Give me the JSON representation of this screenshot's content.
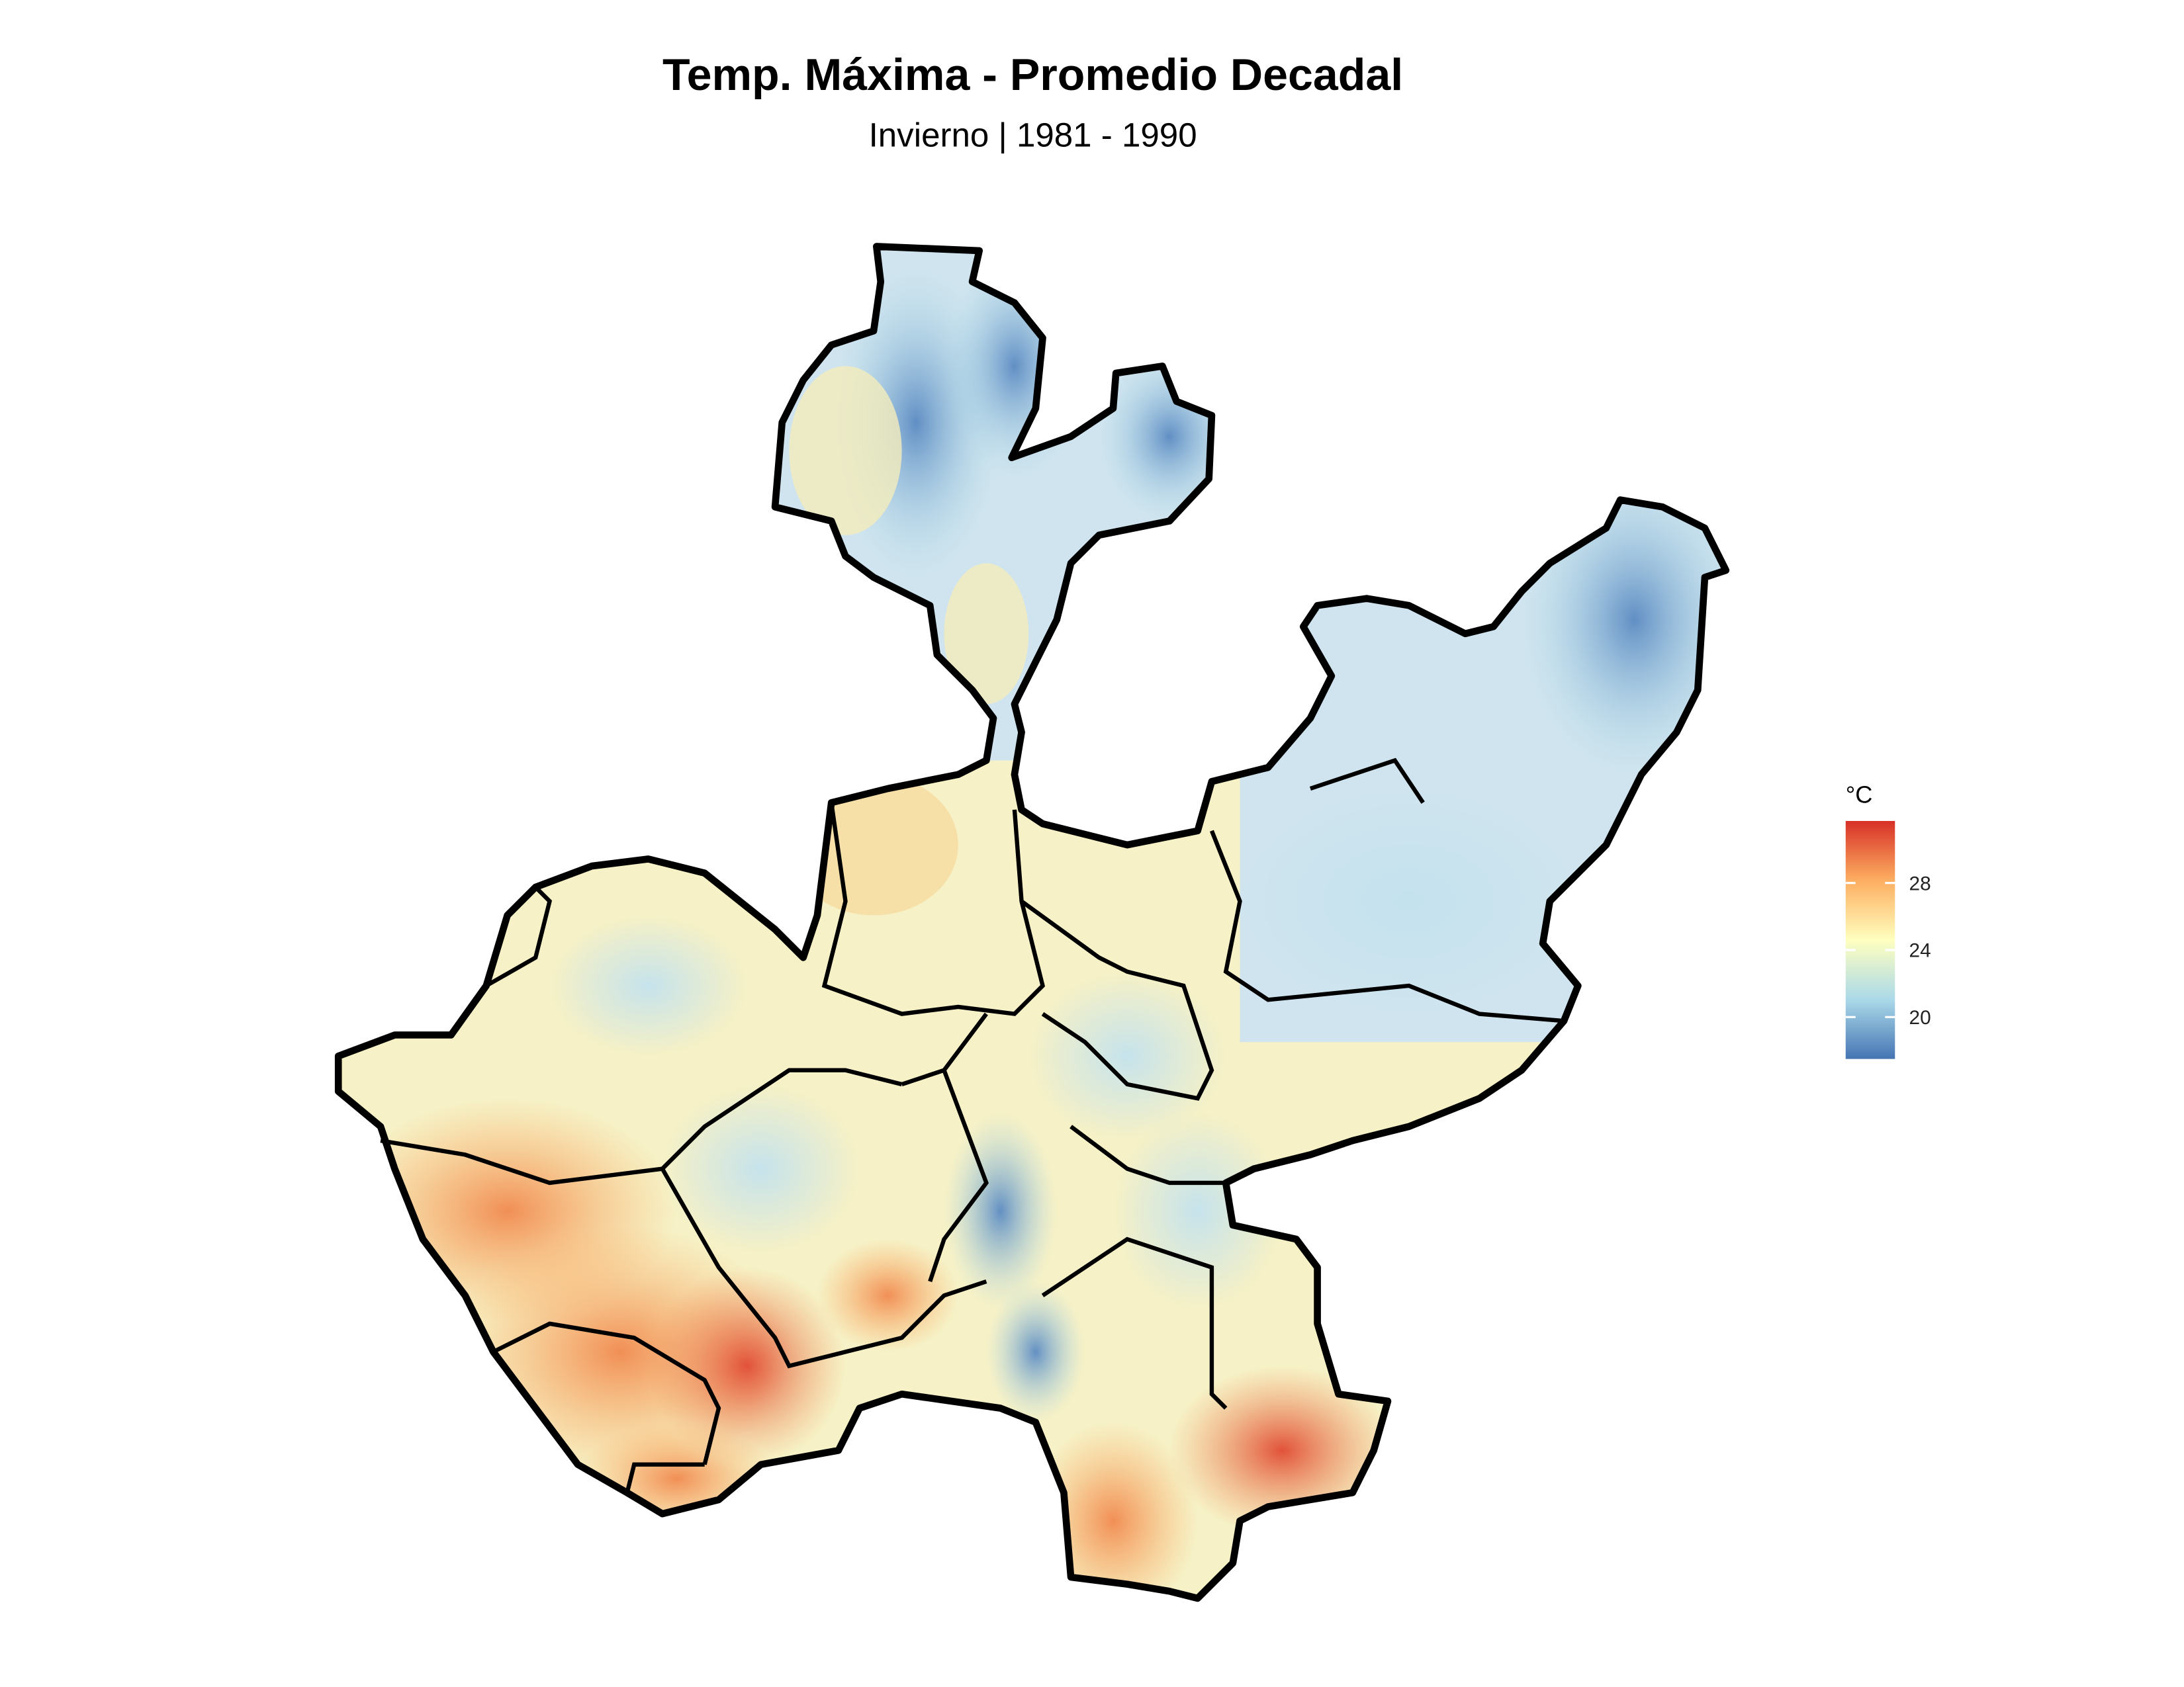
{
  "title": "Temp. Máxima - Promedio Decadal",
  "subtitle": "Invierno | 1981 - 1990",
  "legend": {
    "title": "°C",
    "lim": [
      17.5,
      31.7
    ],
    "ticks": [
      20,
      24,
      28
    ],
    "colors": [
      "#4575b4",
      "#abd9e9",
      "#ffffbf",
      "#fdae61",
      "#d73027"
    ]
  }
}
